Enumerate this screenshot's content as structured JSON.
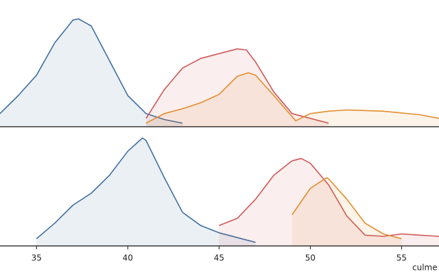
{
  "chart_data": [
    {
      "type": "area",
      "xlim": [
        33,
        57.05
      ],
      "ylim": [
        0,
        1
      ],
      "series": [
        {
          "color": "#3d6fa1",
          "x": [
            33,
            34,
            35,
            36,
            37,
            37.3,
            38,
            39,
            40,
            41,
            42,
            43
          ],
          "values": [
            0.11,
            0.26,
            0.43,
            0.7,
            0.89,
            0.9,
            0.84,
            0.55,
            0.26,
            0.11,
            0.06,
            0.03
          ]
        },
        {
          "color": "#d05757",
          "x": [
            41,
            42,
            43,
            44,
            45,
            46,
            46.5,
            47,
            48,
            49,
            50,
            51
          ],
          "values": [
            0.07,
            0.31,
            0.49,
            0.57,
            0.61,
            0.65,
            0.64,
            0.54,
            0.29,
            0.11,
            0.07,
            0.03
          ]
        },
        {
          "color": "#e38c2b",
          "x": [
            41,
            42,
            43,
            44,
            45,
            46,
            46.6,
            47,
            48,
            49.2,
            50,
            51,
            52,
            54,
            56,
            57.05
          ],
          "values": [
            0.03,
            0.11,
            0.15,
            0.2,
            0.27,
            0.42,
            0.45,
            0.43,
            0.26,
            0.05,
            0.11,
            0.13,
            0.14,
            0.13,
            0.1,
            0.07
          ]
        }
      ]
    },
    {
      "type": "area",
      "xlim": [
        33,
        57.05
      ],
      "ylim": [
        0,
        1
      ],
      "xticks": [
        35,
        40,
        45,
        50,
        55
      ],
      "xlabel": "culme",
      "series": [
        {
          "color": "#3d6fa1",
          "x": [
            35,
            36,
            37,
            38,
            39,
            40,
            40.8,
            41,
            42,
            43,
            44,
            45,
            46,
            47
          ],
          "values": [
            0.06,
            0.19,
            0.34,
            0.44,
            0.59,
            0.79,
            0.9,
            0.88,
            0.57,
            0.28,
            0.17,
            0.11,
            0.07,
            0.03
          ]
        },
        {
          "color": "#d05757",
          "x": [
            45,
            46,
            47,
            48,
            49,
            49.5,
            50,
            51,
            52,
            53,
            54,
            55,
            56,
            57.05
          ],
          "values": [
            0.17,
            0.23,
            0.39,
            0.59,
            0.71,
            0.73,
            0.69,
            0.51,
            0.25,
            0.09,
            0.08,
            0.1,
            0.09,
            0.08
          ]
        },
        {
          "color": "#e38c2b",
          "x": [
            49,
            50,
            50.9,
            51,
            52,
            53,
            54,
            55
          ],
          "values": [
            0.26,
            0.48,
            0.57,
            0.56,
            0.39,
            0.19,
            0.1,
            0.06
          ]
        }
      ]
    }
  ]
}
